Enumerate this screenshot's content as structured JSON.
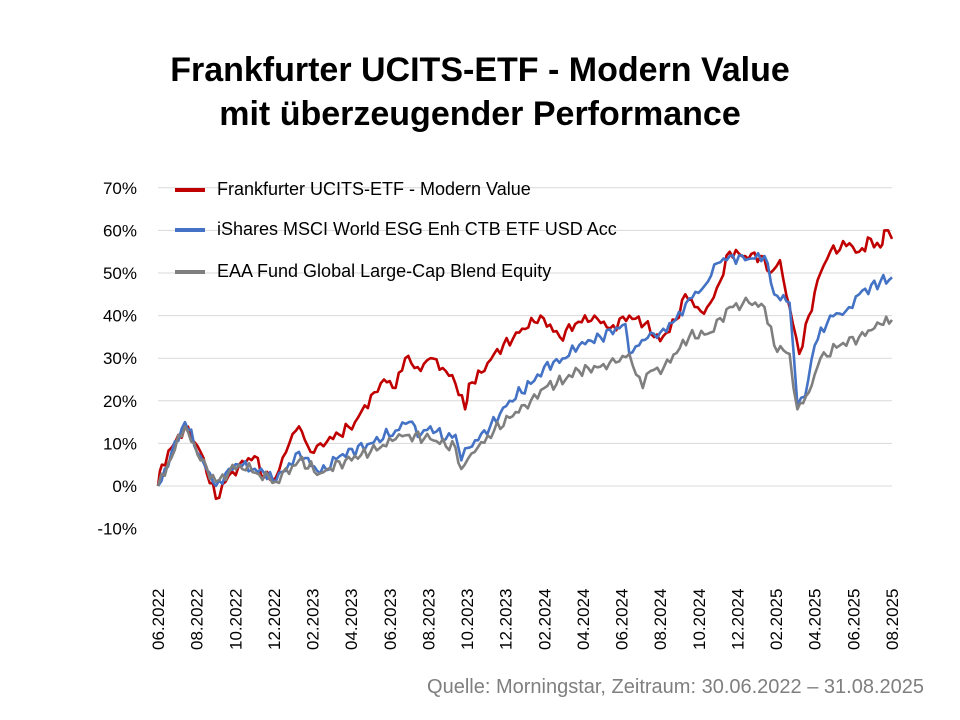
{
  "chart_data": {
    "type": "line",
    "title": "Frankfurter UCITS-ETF - Modern Value mit überzeugender Performance",
    "title_lines": [
      "Frankfurter UCITS-ETF - Modern Value",
      "mit überzeugender Performance"
    ],
    "xlabel": "",
    "ylabel": "",
    "x_unit": "months since 30.06.2022",
    "xlim": [
      0,
      38
    ],
    "ylim": [
      -10,
      70
    ],
    "yticks": [
      -10,
      0,
      10,
      20,
      30,
      40,
      50,
      60,
      70
    ],
    "ytick_labels": [
      "-10%",
      "0%",
      "10%",
      "20%",
      "30%",
      "40%",
      "50%",
      "60%",
      "70%"
    ],
    "xtick_labels": [
      "06.2022",
      "08.2022",
      "10.2022",
      "12.2022",
      "02.2023",
      "04.2023",
      "06.2023",
      "08.2023",
      "10.2023",
      "12.2023",
      "02.2024",
      "04.2024",
      "06.2024",
      "08.2024",
      "10.2024",
      "12.2024",
      "02.2025",
      "04.2025",
      "06.2025",
      "08.2025"
    ],
    "grid": true,
    "legend_position": "top-left",
    "series": [
      {
        "name": "Frankfurter UCITS-ETF - Modern Value",
        "color": "#c00000",
        "points": [
          [
            0,
            0
          ],
          [
            0.2,
            5
          ],
          [
            1.4,
            14
          ],
          [
            2.2,
            8
          ],
          [
            3.0,
            -3
          ],
          [
            3.5,
            1
          ],
          [
            4.2,
            5
          ],
          [
            5.0,
            7
          ],
          [
            5.5,
            2
          ],
          [
            6.1,
            2
          ],
          [
            6.8,
            10
          ],
          [
            7.3,
            14
          ],
          [
            7.9,
            8
          ],
          [
            8.4,
            10
          ],
          [
            9.4,
            12
          ],
          [
            10.2,
            15
          ],
          [
            11.2,
            22
          ],
          [
            11.7,
            25
          ],
          [
            12.3,
            23
          ],
          [
            12.8,
            30
          ],
          [
            13.6,
            27
          ],
          [
            14.1,
            30
          ],
          [
            14.9,
            27
          ],
          [
            15.4,
            24
          ],
          [
            15.9,
            18
          ],
          [
            16.1,
            24
          ],
          [
            16.9,
            27
          ],
          [
            17.4,
            31
          ],
          [
            18.7,
            36
          ],
          [
            19.8,
            40
          ],
          [
            20.8,
            35
          ],
          [
            21.6,
            38
          ],
          [
            22.6,
            40
          ],
          [
            23.4,
            37
          ],
          [
            24.4,
            40
          ],
          [
            25.2,
            38
          ],
          [
            26.0,
            34
          ],
          [
            26.8,
            39
          ],
          [
            27.3,
            45
          ],
          [
            28.1,
            41
          ],
          [
            28.6,
            43
          ],
          [
            29.1,
            48
          ],
          [
            29.6,
            55
          ],
          [
            30.4,
            54
          ],
          [
            31.2,
            54
          ],
          [
            31.7,
            50
          ],
          [
            32.2,
            53
          ],
          [
            32.7,
            42
          ],
          [
            33.2,
            31
          ],
          [
            33.7,
            40
          ],
          [
            34.3,
            50
          ],
          [
            34.8,
            55
          ],
          [
            35.8,
            57
          ],
          [
            36.3,
            55
          ],
          [
            36.9,
            58
          ],
          [
            37.4,
            56
          ],
          [
            37.6,
            60
          ],
          [
            38.0,
            58
          ]
        ]
      },
      {
        "name": "iShares MSCI World ESG Enh CTB ETF USD Acc",
        "color": "#4472c4",
        "points": [
          [
            0,
            0
          ],
          [
            1.4,
            15
          ],
          [
            2.2,
            7
          ],
          [
            3.0,
            0
          ],
          [
            3.5,
            3
          ],
          [
            4.2,
            5
          ],
          [
            5.5,
            3
          ],
          [
            6.1,
            1
          ],
          [
            7.3,
            8
          ],
          [
            8.4,
            3
          ],
          [
            9.4,
            7
          ],
          [
            11.0,
            10
          ],
          [
            12.3,
            13
          ],
          [
            13.0,
            15
          ],
          [
            13.6,
            12
          ],
          [
            14.1,
            14
          ],
          [
            14.9,
            11
          ],
          [
            15.4,
            12
          ],
          [
            15.7,
            6
          ],
          [
            16.1,
            9
          ],
          [
            17.2,
            14
          ],
          [
            18.2,
            20
          ],
          [
            19.3,
            24
          ],
          [
            20.0,
            28
          ],
          [
            21.1,
            30
          ],
          [
            21.8,
            33
          ],
          [
            22.9,
            35
          ],
          [
            24.2,
            38
          ],
          [
            24.4,
            31
          ],
          [
            24.9,
            33
          ],
          [
            25.5,
            36
          ],
          [
            26.0,
            36
          ],
          [
            26.8,
            39
          ],
          [
            27.5,
            44
          ],
          [
            28.3,
            47
          ],
          [
            28.8,
            52
          ],
          [
            29.6,
            54
          ],
          [
            30.4,
            53
          ],
          [
            31.4,
            54
          ],
          [
            31.9,
            45
          ],
          [
            32.7,
            43
          ],
          [
            33.1,
            19
          ],
          [
            33.5,
            21
          ],
          [
            34.0,
            33
          ],
          [
            34.8,
            40
          ],
          [
            35.6,
            41
          ],
          [
            36.3,
            45
          ],
          [
            37.4,
            48
          ],
          [
            38.0,
            49
          ]
        ]
      },
      {
        "name": "EAA Fund Global Large-Cap Blend Equity",
        "color": "#7f7f7f",
        "points": [
          [
            0,
            0
          ],
          [
            1.4,
            14
          ],
          [
            2.2,
            6
          ],
          [
            3.0,
            1
          ],
          [
            4.2,
            5
          ],
          [
            6.1,
            1
          ],
          [
            7.3,
            6
          ],
          [
            8.4,
            3
          ],
          [
            9.7,
            6
          ],
          [
            11.0,
            8
          ],
          [
            12.3,
            11
          ],
          [
            13.0,
            12
          ],
          [
            14.1,
            11
          ],
          [
            15.4,
            9
          ],
          [
            15.7,
            4
          ],
          [
            16.4,
            8
          ],
          [
            17.4,
            13
          ],
          [
            18.2,
            16
          ],
          [
            19.3,
            20
          ],
          [
            20.0,
            23
          ],
          [
            21.1,
            25
          ],
          [
            21.8,
            27
          ],
          [
            22.9,
            28
          ],
          [
            23.7,
            29
          ],
          [
            24.4,
            31
          ],
          [
            25.1,
            23
          ],
          [
            25.5,
            27
          ],
          [
            26.2,
            28
          ],
          [
            27.5,
            35
          ],
          [
            28.6,
            36
          ],
          [
            29.6,
            42
          ],
          [
            30.6,
            43
          ],
          [
            31.4,
            42
          ],
          [
            31.9,
            33
          ],
          [
            32.7,
            31
          ],
          [
            33.1,
            18
          ],
          [
            33.7,
            22
          ],
          [
            34.3,
            30
          ],
          [
            35.3,
            33
          ],
          [
            36.3,
            35
          ],
          [
            37.4,
            38
          ],
          [
            38.0,
            39
          ]
        ]
      }
    ],
    "source": "Quelle: Morningstar, Zeitraum: 30.06.2022 – 31.08.2025"
  }
}
